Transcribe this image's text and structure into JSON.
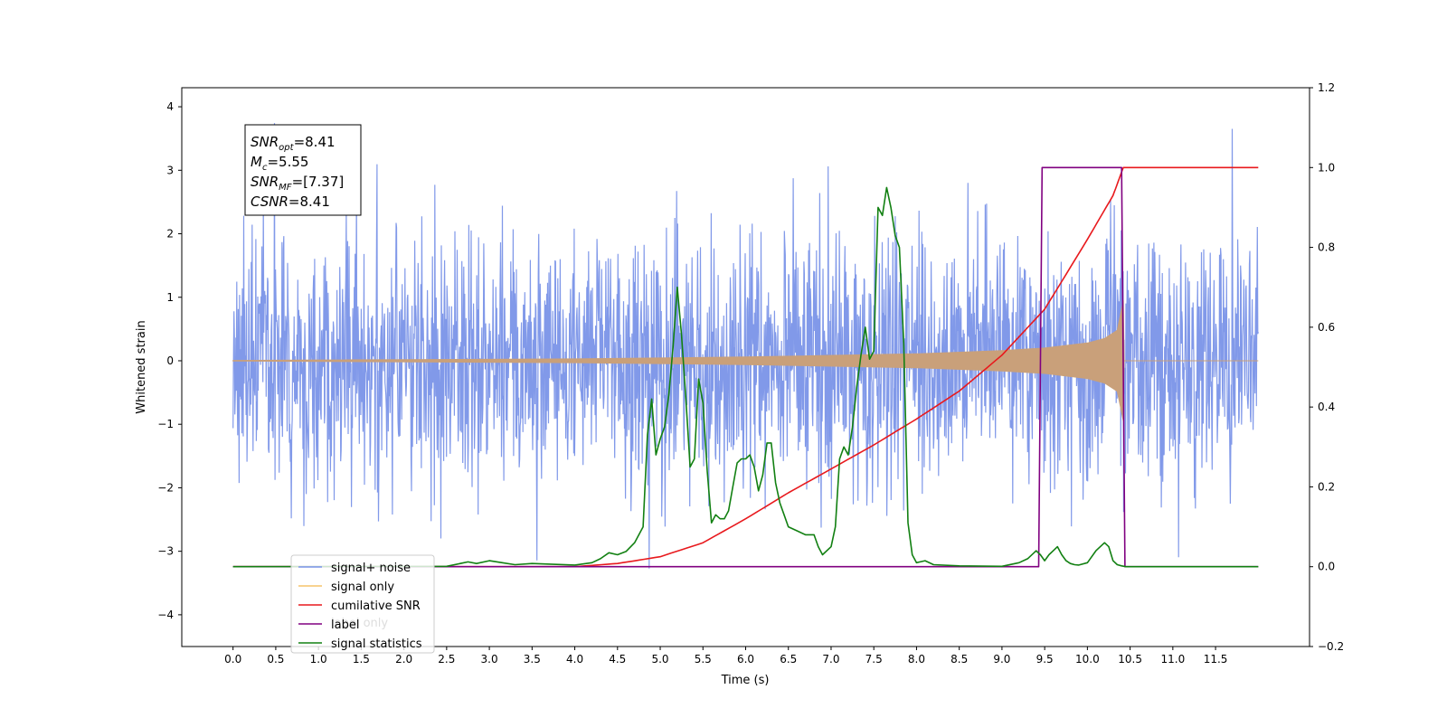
{
  "chart_data": {
    "type": "line",
    "title": "",
    "xlabel": "Time (s)",
    "ylabel": "Whitened strain",
    "x_ticks": [
      "0.0",
      "0.5",
      "1.0",
      "1.5",
      "2.0",
      "2.5",
      "3.0",
      "3.5",
      "4.0",
      "4.5",
      "5.0",
      "5.5",
      "6.0",
      "6.5",
      "7.0",
      "7.5",
      "8.0",
      "8.5",
      "9.0",
      "9.5",
      "10.0",
      "10.5",
      "11.0",
      "11.5"
    ],
    "y_ticks_left": [
      "4",
      "3",
      "2",
      "1",
      "0",
      "−1",
      "−2",
      "−3",
      "−4"
    ],
    "y_ticks_right": [
      "1.2",
      "1.0",
      "0.8",
      "0.6",
      "0.4",
      "0.2",
      "0.0",
      "−0.2"
    ],
    "xlim": [
      -0.6,
      12.6
    ],
    "ylim_left": [
      -4.5,
      4.3
    ],
    "ylim_right": [
      -0.2,
      1.2
    ],
    "grid": false,
    "annotation": {
      "lines": [
        {
          "sym": "SNR",
          "sub": "opt",
          "val": "=8.41"
        },
        {
          "sym": "M",
          "sub": "c",
          "val": "=5.55"
        },
        {
          "sym": "SNR",
          "sub": "MF",
          "val": "=[7.37]"
        },
        {
          "sym": "CSNR",
          "sub": "",
          "val": "=8.41"
        }
      ]
    },
    "legend": {
      "placement": "lower-left",
      "entries": [
        {
          "label": "signal+ noise",
          "color": "#7a94e8"
        },
        {
          "label": "signal only",
          "color": "#f5c36a"
        },
        {
          "label": "cumilative SNR",
          "color": "#e8191d"
        },
        {
          "label": "label",
          "color": "#800080"
        },
        {
          "label": "signal statistics",
          "color": "#128012"
        }
      ],
      "hidden_text": "label only"
    },
    "series": [
      {
        "name": "signal+ noise",
        "axis": "left",
        "color": "#7a94e8",
        "x_range": [
          0.0,
          12.0
        ],
        "noise_sigma": 1.0,
        "max": 3.9,
        "min": -3.9
      },
      {
        "name": "signal only",
        "axis": "left",
        "color": "#c9a07a",
        "x": [
          0.0,
          4.0,
          6.0,
          8.0,
          9.0,
          9.5,
          10.0,
          10.2,
          10.35,
          10.42,
          10.43,
          12.0
        ],
        "amplitude": [
          0.005,
          0.03,
          0.06,
          0.11,
          0.16,
          0.2,
          0.28,
          0.35,
          0.48,
          0.95,
          0.0,
          0.0
        ]
      },
      {
        "name": "cumilative SNR",
        "axis": "right",
        "color": "#e8191d",
        "x": [
          0.0,
          4.0,
          4.5,
          5.0,
          5.5,
          6.0,
          6.5,
          7.0,
          7.5,
          8.0,
          8.5,
          9.0,
          9.5,
          10.0,
          10.3,
          10.42,
          10.43,
          12.0
        ],
        "y": [
          0.0,
          0.0,
          0.008,
          0.025,
          0.06,
          0.12,
          0.185,
          0.245,
          0.305,
          0.37,
          0.44,
          0.53,
          0.645,
          0.82,
          0.93,
          1.0,
          1.0,
          1.0
        ]
      },
      {
        "name": "label",
        "axis": "right",
        "color": "#800080",
        "x": [
          0.0,
          9.43,
          9.47,
          10.4,
          10.44,
          12.0
        ],
        "y": [
          0.0,
          0.0,
          1.0,
          1.0,
          0.0,
          0.0
        ]
      },
      {
        "name": "signal statistics",
        "axis": "right",
        "color": "#128012",
        "x": [
          0.0,
          2.5,
          2.75,
          2.85,
          3.0,
          3.15,
          3.3,
          3.5,
          3.75,
          4.0,
          4.2,
          4.3,
          4.4,
          4.5,
          4.6,
          4.7,
          4.8,
          4.85,
          4.9,
          4.95,
          5.0,
          5.05,
          5.1,
          5.15,
          5.2,
          5.25,
          5.3,
          5.35,
          5.4,
          5.45,
          5.5,
          5.55,
          5.6,
          5.65,
          5.7,
          5.75,
          5.8,
          5.85,
          5.9,
          5.95,
          6.0,
          6.05,
          6.1,
          6.15,
          6.2,
          6.25,
          6.3,
          6.35,
          6.4,
          6.45,
          6.5,
          6.6,
          6.7,
          6.8,
          6.85,
          6.9,
          7.0,
          7.05,
          7.1,
          7.15,
          7.2,
          7.25,
          7.3,
          7.35,
          7.4,
          7.45,
          7.5,
          7.55,
          7.6,
          7.65,
          7.7,
          7.75,
          7.8,
          7.85,
          7.9,
          7.95,
          8.0,
          8.1,
          8.2,
          8.5,
          9.0,
          9.2,
          9.3,
          9.4,
          9.45,
          9.5,
          9.55,
          9.6,
          9.65,
          9.7,
          9.75,
          9.8,
          9.85,
          9.9,
          10.0,
          10.1,
          10.2,
          10.25,
          10.3,
          10.35,
          10.4,
          10.45,
          12.0
        ],
        "y": [
          0.0,
          0.001,
          0.012,
          0.008,
          0.015,
          0.01,
          0.005,
          0.008,
          0.006,
          0.004,
          0.01,
          0.02,
          0.035,
          0.03,
          0.038,
          0.06,
          0.1,
          0.33,
          0.42,
          0.28,
          0.32,
          0.35,
          0.43,
          0.55,
          0.7,
          0.58,
          0.42,
          0.25,
          0.27,
          0.47,
          0.41,
          0.24,
          0.11,
          0.13,
          0.12,
          0.12,
          0.14,
          0.2,
          0.26,
          0.27,
          0.27,
          0.28,
          0.25,
          0.19,
          0.23,
          0.31,
          0.31,
          0.21,
          0.16,
          0.13,
          0.1,
          0.09,
          0.08,
          0.08,
          0.05,
          0.03,
          0.05,
          0.1,
          0.27,
          0.3,
          0.28,
          0.35,
          0.45,
          0.53,
          0.6,
          0.52,
          0.54,
          0.9,
          0.88,
          0.95,
          0.9,
          0.83,
          0.8,
          0.56,
          0.11,
          0.03,
          0.01,
          0.015,
          0.005,
          0.002,
          0.001,
          0.01,
          0.02,
          0.04,
          0.03,
          0.015,
          0.03,
          0.04,
          0.05,
          0.03,
          0.015,
          0.008,
          0.005,
          0.004,
          0.01,
          0.04,
          0.06,
          0.05,
          0.015,
          0.005,
          0.002,
          0.0,
          0.0
        ]
      }
    ]
  }
}
